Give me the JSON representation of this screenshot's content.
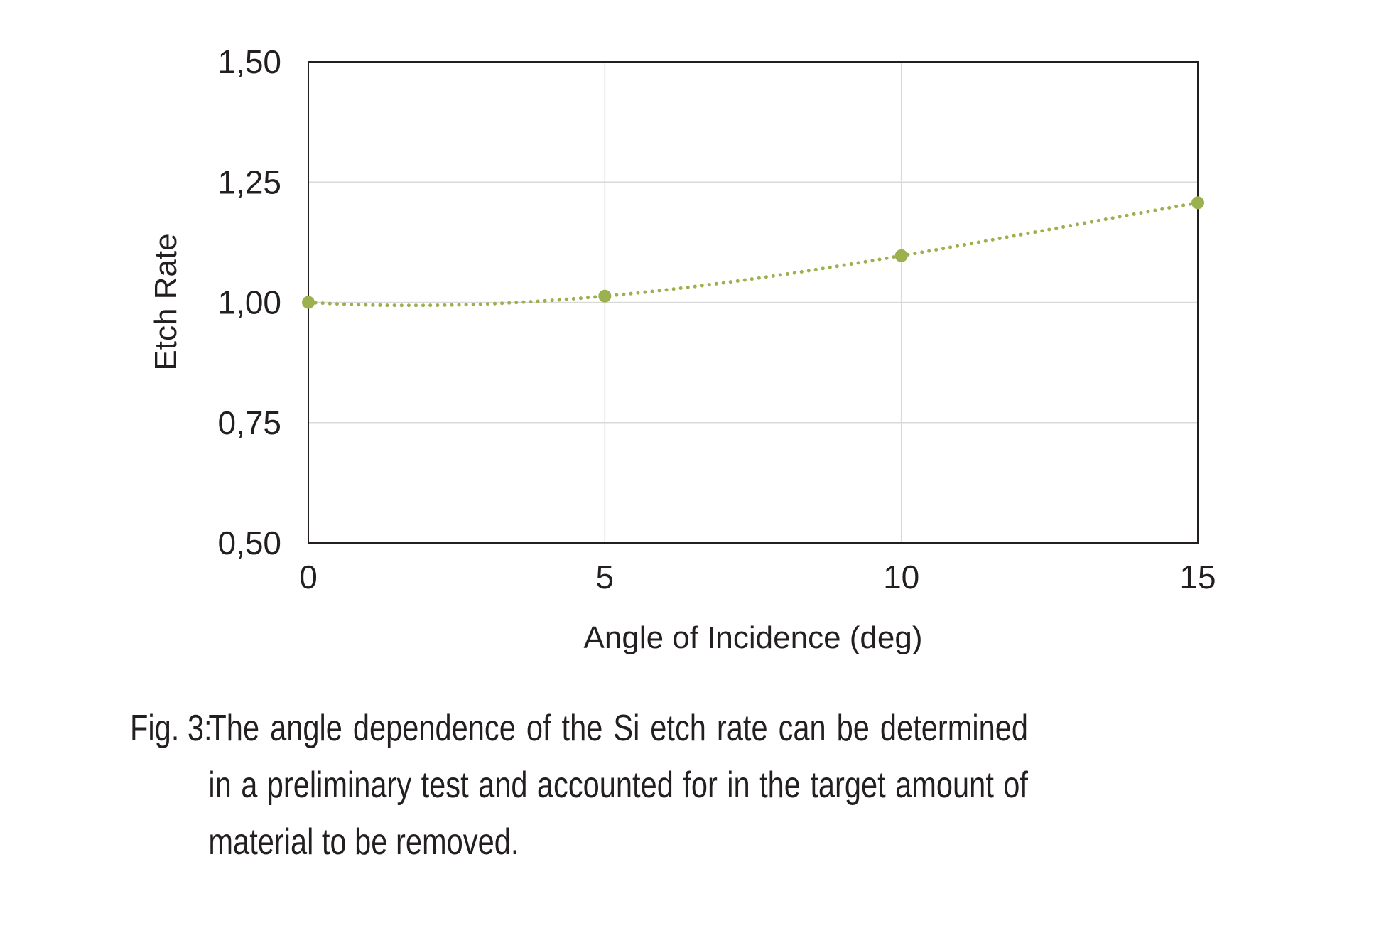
{
  "chart_data": {
    "type": "line",
    "title": "",
    "xlabel": "Angle of Incidence (deg)",
    "ylabel": "Etch Rate",
    "xlim": [
      0,
      15
    ],
    "ylim": [
      0.5,
      1.5
    ],
    "x_ticks": [
      0,
      5,
      10,
      15
    ],
    "x_tick_labels": [
      "0",
      "5",
      "10",
      "15"
    ],
    "y_ticks": [
      0.5,
      0.75,
      1.0,
      1.25,
      1.5
    ],
    "y_tick_labels": [
      "0,50",
      "0,75",
      "1,00",
      "1,25",
      "1,50"
    ],
    "grid": true,
    "legend": "none",
    "series": [
      {
        "x": [
          0,
          5,
          10,
          15
        ],
        "y": [
          1.0,
          1.013,
          1.097,
          1.207
        ],
        "color": "#9bb14f",
        "marker": "circle",
        "trendline": "polynomial",
        "trendline_style": "dotted"
      }
    ]
  },
  "caption": {
    "label": "Fig. 3:",
    "text": "The angle dependence of the Si etch rate can be determined in a preliminary test and accounted for in the target amount of material to be removed."
  }
}
